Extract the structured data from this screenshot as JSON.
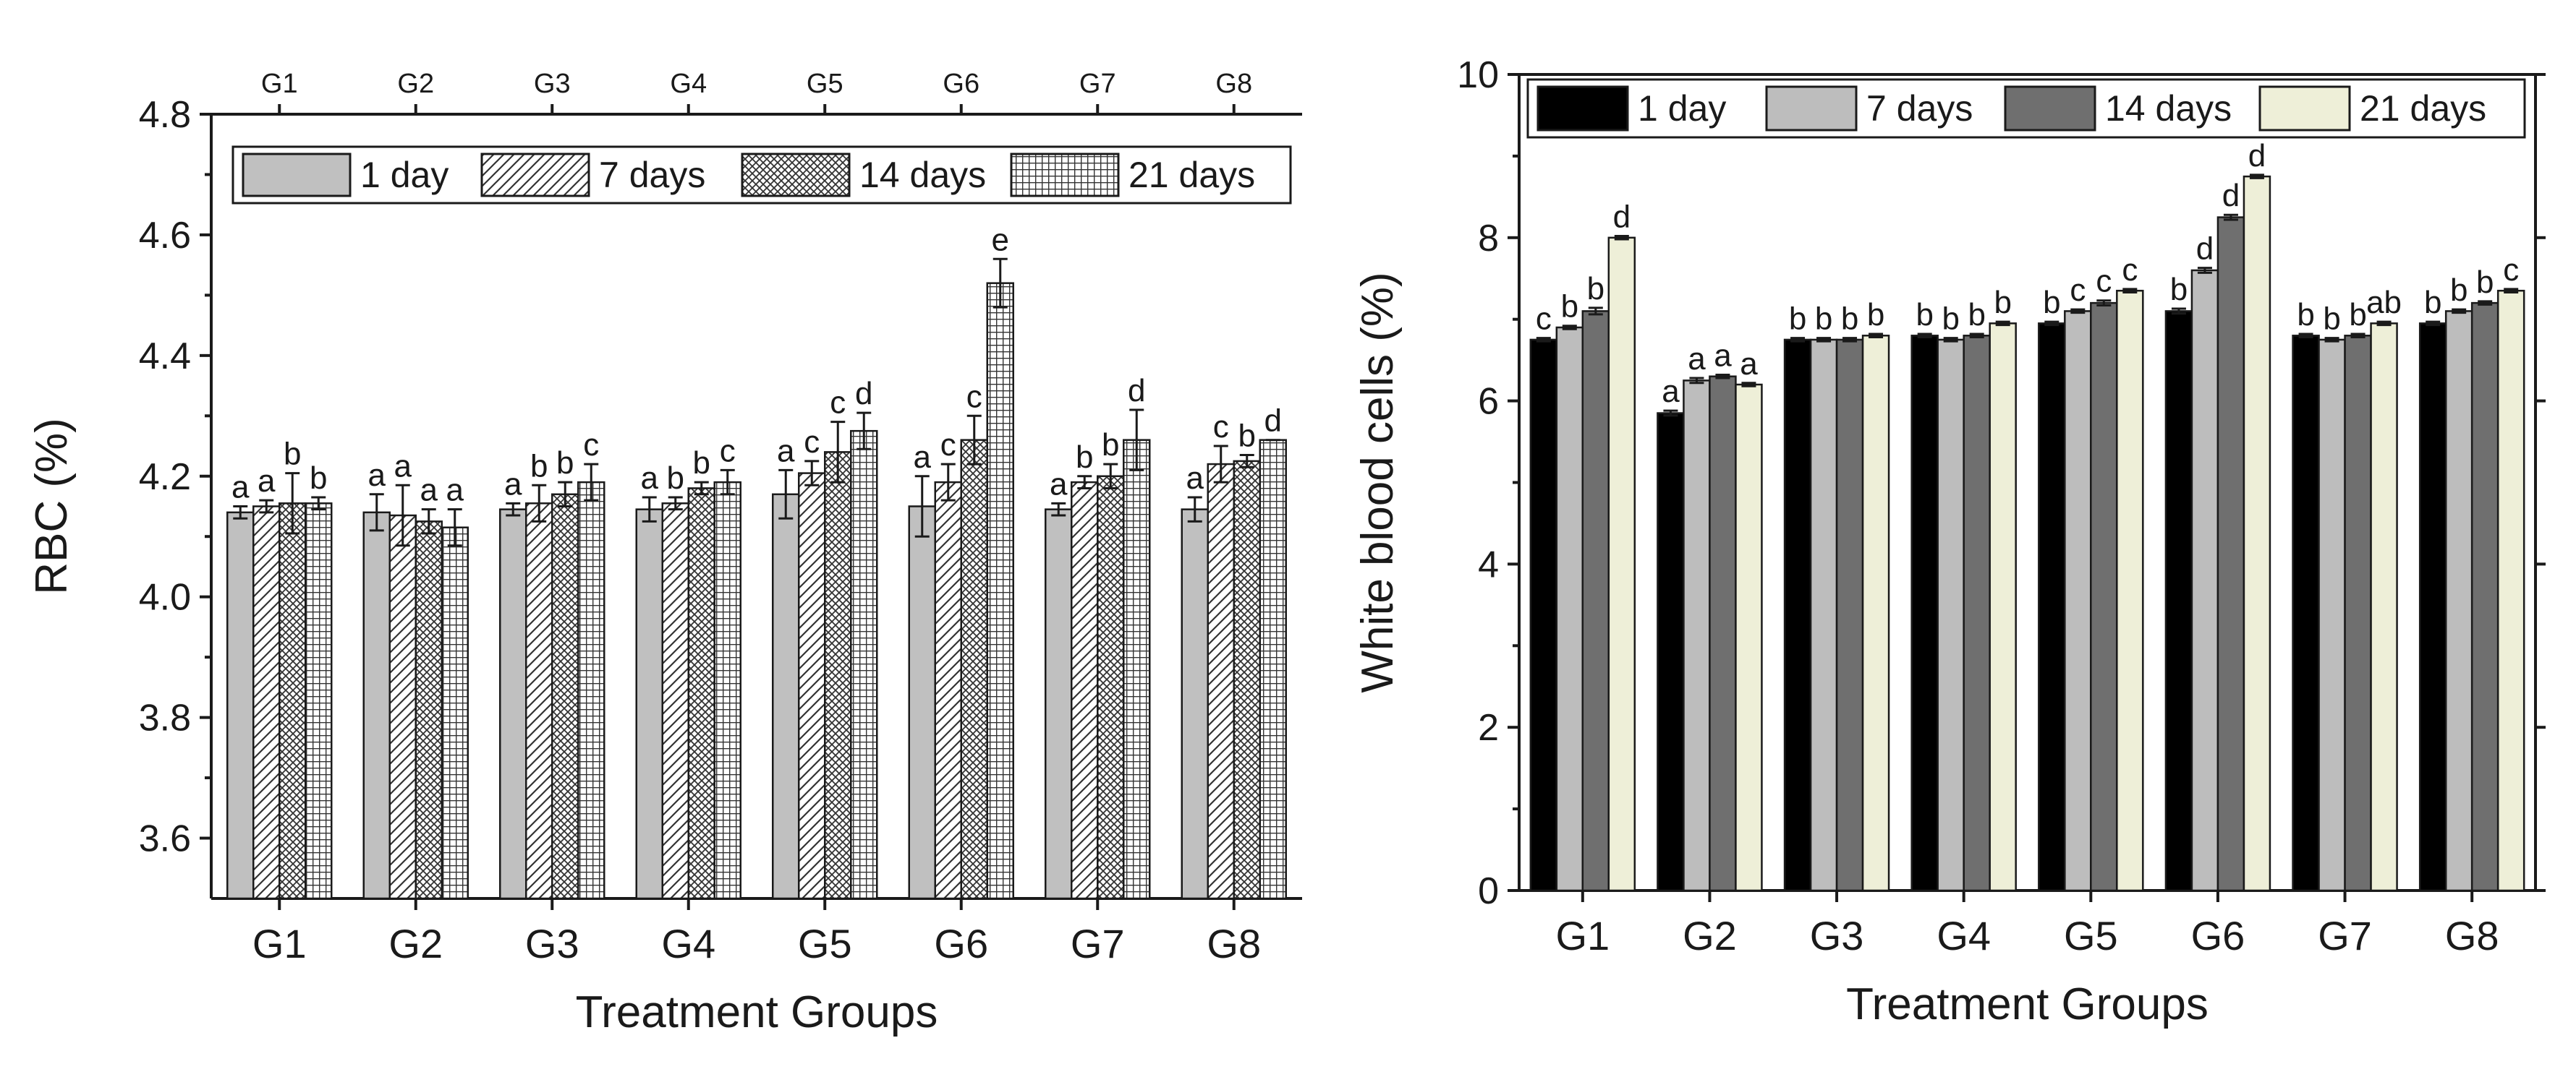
{
  "chart_data": [
    {
      "type": "bar",
      "title": "",
      "xlabel": "Treatment Groups",
      "ylabel": "RBC (%)",
      "ylim": [
        3.5,
        4.8
      ],
      "yticks": [
        "3.6",
        "3.8",
        "4.0",
        "4.2",
        "4.4",
        "4.6",
        "4.8"
      ],
      "yticks_values": [
        3.6,
        3.8,
        4.0,
        4.2,
        4.4,
        4.6,
        4.8
      ],
      "categories": [
        "G1",
        "G2",
        "G3",
        "G4",
        "G5",
        "G6",
        "G7",
        "G8"
      ],
      "top_labels": [
        "G1",
        "G2",
        "G3",
        "G4",
        "G5",
        "G6",
        "G7",
        "G8"
      ],
      "legend_position": "top",
      "series": [
        {
          "name": "1 day",
          "color": "#c0c0c0",
          "pattern": "solid",
          "values": [
            4.14,
            4.14,
            4.145,
            4.145,
            4.17,
            4.15,
            4.145,
            4.145
          ],
          "errors": [
            0.01,
            0.03,
            0.01,
            0.02,
            0.04,
            0.05,
            0.01,
            0.02
          ],
          "labels": [
            "a",
            "a",
            "a",
            "a",
            "a",
            "a",
            "a",
            "a"
          ]
        },
        {
          "name": "7 days",
          "color": "#ffffff",
          "pattern": "diagonal",
          "values": [
            4.15,
            4.135,
            4.155,
            4.155,
            4.205,
            4.19,
            4.19,
            4.22
          ],
          "errors": [
            0.01,
            0.05,
            0.03,
            0.01,
            0.02,
            0.03,
            0.01,
            0.03
          ],
          "labels": [
            "a",
            "a",
            "b",
            "b",
            "c",
            "c",
            "b",
            "c"
          ]
        },
        {
          "name": "14 days",
          "color": "#ffffff",
          "pattern": "crosshatch",
          "values": [
            4.155,
            4.125,
            4.17,
            4.18,
            4.24,
            4.26,
            4.2,
            4.225
          ],
          "errors": [
            0.05,
            0.02,
            0.02,
            0.01,
            0.05,
            0.04,
            0.02,
            0.01
          ],
          "labels": [
            "b",
            "a",
            "b",
            "b",
            "c",
            "c",
            "b",
            "b"
          ]
        },
        {
          "name": "21 days",
          "color": "#ffffff",
          "pattern": "grid",
          "values": [
            4.155,
            4.115,
            4.19,
            4.19,
            4.275,
            4.52,
            4.26,
            4.26
          ],
          "errors": [
            0.01,
            0.03,
            0.03,
            0.02,
            0.03,
            0.04,
            0.05,
            0.0
          ],
          "labels": [
            "b",
            "a",
            "c",
            "c",
            "d",
            "e",
            "d",
            "d"
          ]
        }
      ]
    },
    {
      "type": "bar",
      "title": "",
      "xlabel": "Treatment Groups",
      "ylabel": "White blood cells (%)",
      "ylim": [
        0,
        10
      ],
      "yticks": [
        "0",
        "2",
        "4",
        "6",
        "8",
        "10"
      ],
      "yticks_values": [
        0,
        2,
        4,
        6,
        8,
        10
      ],
      "categories": [
        "G1",
        "G2",
        "G3",
        "G4",
        "G5",
        "G6",
        "G7",
        "G8"
      ],
      "legend_position": "top",
      "series": [
        {
          "name": "1 day",
          "color": "#000000",
          "values": [
            6.75,
            5.85,
            6.75,
            6.8,
            6.95,
            7.1,
            6.8,
            6.95
          ],
          "errors": [
            0.02,
            0.03,
            0.02,
            0.02,
            0.02,
            0.03,
            0.02,
            0.02
          ],
          "labels": [
            "c",
            "a",
            "b",
            "b",
            "b",
            "b",
            "b",
            "b"
          ]
        },
        {
          "name": "7 days",
          "color": "#bdbdbd",
          "values": [
            6.9,
            6.25,
            6.75,
            6.75,
            7.1,
            7.6,
            6.75,
            7.1
          ],
          "errors": [
            0.02,
            0.03,
            0.02,
            0.02,
            0.02,
            0.03,
            0.02,
            0.02
          ],
          "labels": [
            "b",
            "a",
            "b",
            "b",
            "c",
            "d",
            "b",
            "b"
          ]
        },
        {
          "name": "14 days",
          "color": "#6f6f6f",
          "values": [
            7.1,
            6.3,
            6.75,
            6.8,
            7.2,
            8.25,
            6.8,
            7.2
          ],
          "errors": [
            0.04,
            0.02,
            0.02,
            0.02,
            0.03,
            0.03,
            0.02,
            0.02
          ],
          "labels": [
            "b",
            "a",
            "b",
            "b",
            "c",
            "d",
            "b",
            "b"
          ]
        },
        {
          "name": "21 days",
          "color": "#eeefd8",
          "values": [
            8.0,
            6.2,
            6.8,
            6.95,
            7.35,
            8.75,
            6.95,
            7.35
          ],
          "errors": [
            0.02,
            0.02,
            0.02,
            0.02,
            0.02,
            0.02,
            0.02,
            0.02
          ],
          "labels": [
            "d",
            "a",
            "b",
            "b",
            "c",
            "d",
            "ab",
            "c"
          ]
        }
      ]
    }
  ]
}
